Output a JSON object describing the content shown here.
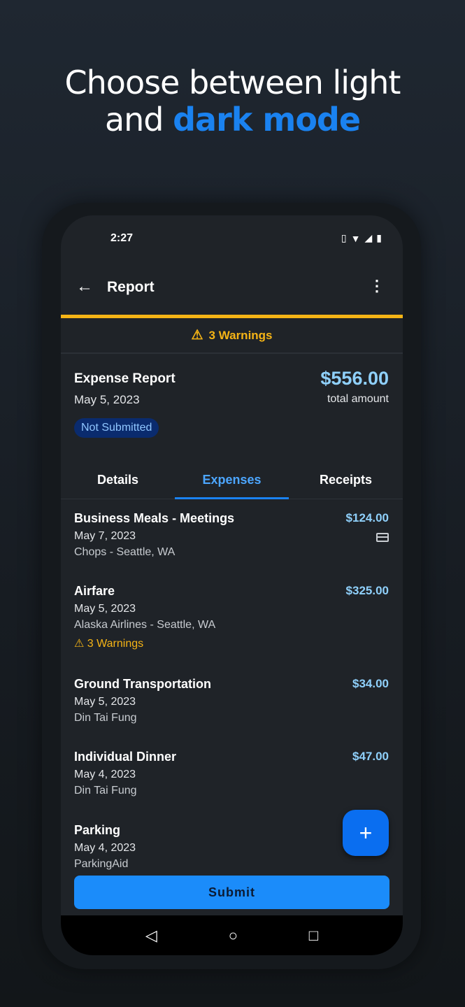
{
  "headline": {
    "line1": "Choose between light",
    "line2_plain": "and ",
    "line2_accent": "dark mode"
  },
  "status": {
    "time": "2:27",
    "icons": [
      "vibrate-icon",
      "wifi-icon",
      "signal-icon",
      "battery-icon"
    ]
  },
  "appbar": {
    "title": "Report",
    "back_icon": "arrow-left-icon",
    "menu_icon": "more-vertical-icon"
  },
  "warning_banner": {
    "text": "3 Warnings",
    "color": "#f5b416"
  },
  "report": {
    "title": "Expense Report",
    "date": "May 5, 2023",
    "amount": "$556.00",
    "amount_label": "total amount",
    "status": "Not Submitted"
  },
  "tabs": [
    {
      "label": "Details"
    },
    {
      "label": "Expenses",
      "active": true
    },
    {
      "label": "Receipts"
    }
  ],
  "expenses": [
    {
      "title": "Business Meals - Meetings",
      "date": "May 7, 2023",
      "merchant": "Chops - Seattle, WA",
      "amount": "$124.00",
      "icon": "credit-card-icon"
    },
    {
      "title": "Airfare",
      "date": "May 5, 2023",
      "merchant": "Alaska Airlines - Seattle, WA",
      "amount": "$325.00",
      "warning": "3 Warnings"
    },
    {
      "title": "Ground Transportation",
      "date": "May 5, 2023",
      "merchant": "Din Tai Fung",
      "amount": "$34.00"
    },
    {
      "title": "Individual Dinner",
      "date": "May 4, 2023",
      "merchant": "Din Tai Fung",
      "amount": "$47.00"
    },
    {
      "title": "Parking",
      "date": "May 4, 2023",
      "merchant": "ParkingAid"
    }
  ],
  "fab": {
    "label": "+"
  },
  "submit": {
    "label": "Submit"
  },
  "accent": "#1a82f0"
}
